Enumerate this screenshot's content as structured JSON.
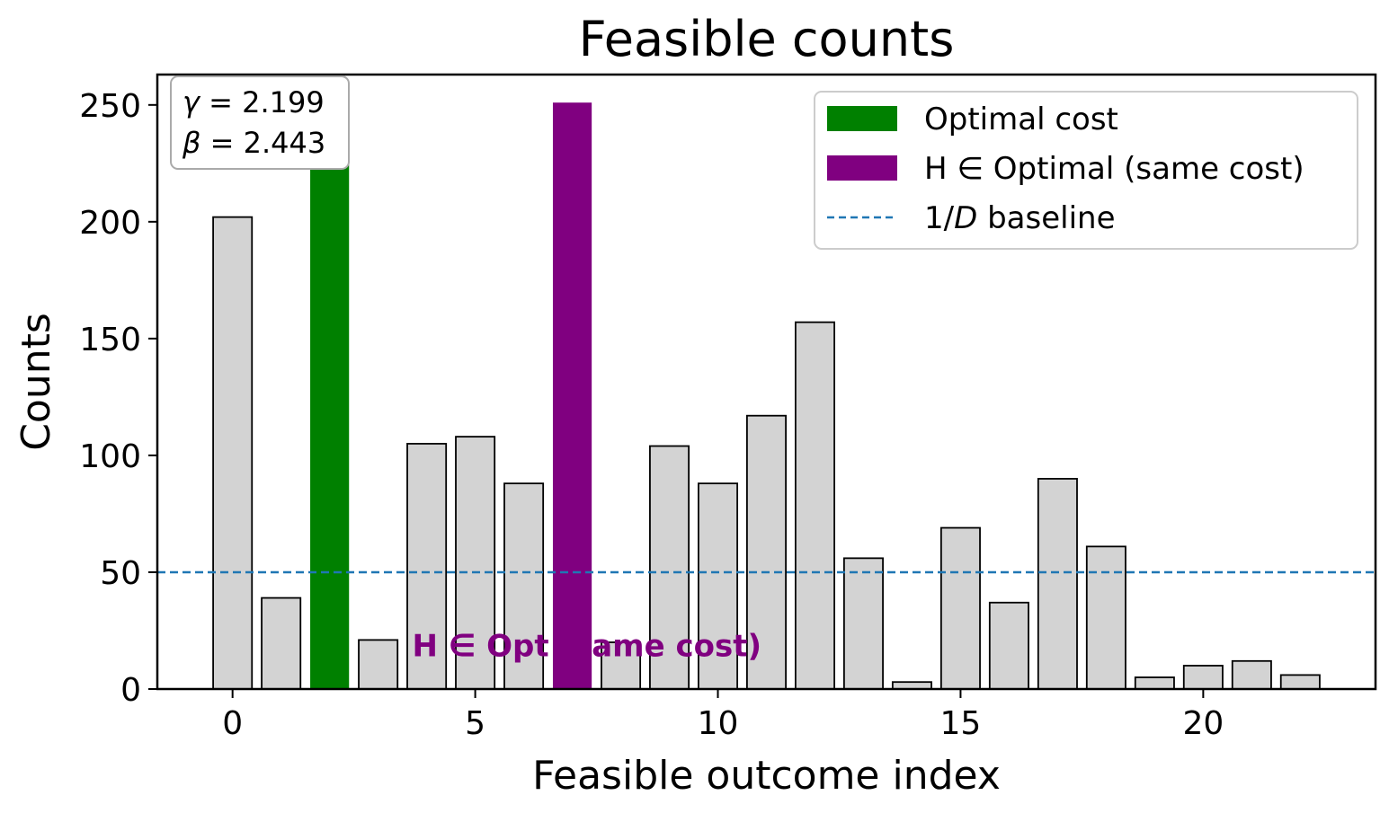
{
  "chart_data": {
    "type": "bar",
    "title": "Feasible counts",
    "xlabel": "Feasible outcome index",
    "ylabel": "Counts",
    "x": [
      0,
      1,
      2,
      3,
      4,
      5,
      6,
      7,
      8,
      9,
      10,
      11,
      12,
      13,
      14,
      15,
      16,
      17,
      18,
      19,
      20,
      21,
      22
    ],
    "values": [
      202,
      39,
      250,
      21,
      105,
      108,
      88,
      251,
      20,
      104,
      88,
      117,
      157,
      56,
      3,
      69,
      37,
      90,
      61,
      5,
      10,
      12,
      6
    ],
    "xlim": [
      -1.55,
      23.55
    ],
    "ylim": [
      0,
      263
    ],
    "xticks": [
      0,
      5,
      10,
      15,
      20
    ],
    "yticks": [
      0,
      50,
      100,
      150,
      200,
      250
    ],
    "highlight": {
      "optimal_index": 2,
      "h_in_optimal_index": 7
    },
    "baseline": {
      "value": 50,
      "style": "dashed"
    },
    "legend": {
      "placement": "top-right",
      "entries": [
        {
          "kind": "bar",
          "color": "#008000",
          "label": "Optimal cost"
        },
        {
          "kind": "bar",
          "color": "#800080",
          "label": "H ∈ Optimal (same cost)"
        },
        {
          "kind": "line",
          "color": "#1f77b4",
          "label_prefix": "1/",
          "label_italic": "D",
          "label_suffix": " baseline"
        }
      ]
    },
    "params": {
      "gamma_symbol": "γ",
      "gamma_text": " = 2.199",
      "beta_symbol": "β",
      "beta_text": " = 2.443"
    },
    "annotation": {
      "text": "H ∈ Opt (same cost)",
      "x": 7.3,
      "y": 14,
      "color": "#800080"
    },
    "grid": false,
    "colors": {
      "default_bar": "#d3d3d3",
      "bar_edge": "#000000",
      "optimal": "#008000",
      "h_in_optimal": "#800080",
      "baseline": "#1f77b4"
    }
  }
}
